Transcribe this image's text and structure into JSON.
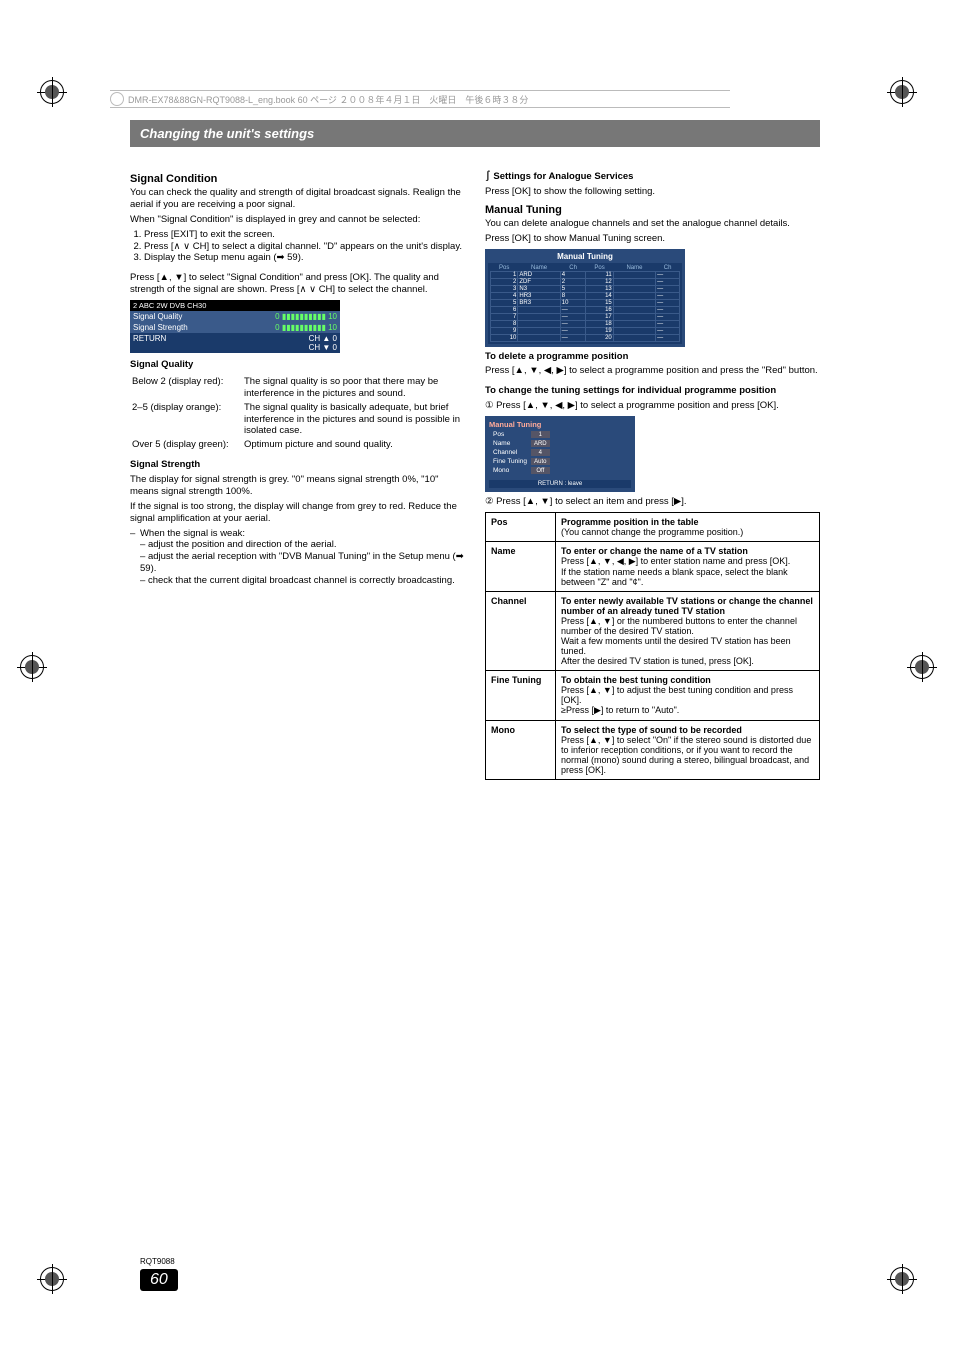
{
  "meta": {
    "line": "DMR-EX78&88GN-RQT9088-L_eng.book  60 ページ  ２００８年４月１日　火曜日　午後６時３８分"
  },
  "header": "Changing the unit's settings",
  "left": {
    "h1": "Signal Condition",
    "p1": "You can check the quality and strength of digital broadcast signals. Realign the aerial if you are receiving a poor signal.",
    "p2": "When \"Signal Condition\" is displayed in grey and cannot be selected:",
    "steps": [
      "Press [EXIT] to exit the screen.",
      "Press [∧ ∨ CH] to select a digital channel. \"D\" appears on the unit's display.",
      "Display the Setup menu again (➡ 59)."
    ],
    "p3": "Press [▲, ▼] to select \"Signal Condition\" and press [OK]. The quality and strength of the signal are shown. Press [∧ ∨ CH] to select the channel.",
    "signal": {
      "hdr": "2 ABC  2W  DVB  CH30",
      "rows": [
        {
          "label": "Signal Quality",
          "v0": "0",
          "v1": "10"
        },
        {
          "label": "Signal Strength",
          "v0": "0",
          "v1": "10"
        }
      ],
      "ftrL": "RETURN",
      "ftrR1": "CH ▲ 0",
      "ftrR2": "CH ▼ 0"
    },
    "sq": "Signal Quality",
    "sqrows": [
      {
        "a": "Below 2 (display red):",
        "b": "The signal quality is so poor that there may be interference in the pictures and sound."
      },
      {
        "a": "2–5 (display orange):",
        "b": "The signal quality is basically adequate, but brief interference in the pictures and sound is possible in isolated case."
      },
      {
        "a": "Over 5 (display green):",
        "b": "Optimum picture and sound quality."
      }
    ],
    "ss": "Signal Strength",
    "ss1": "The display for signal strength is grey. \"0\" means signal strength 0%, \"10\" means signal strength 100%.",
    "ss2": "If the signal is too strong, the display will change from grey to red. Reduce the signal amplification at your aerial.",
    "ss3": "When the signal is weak:",
    "sslist": [
      "adjust the position and direction of the aerial.",
      "adjust the aerial reception with \"DVB Manual Tuning\" in the Setup menu (➡ 59).",
      "check that the current digital broadcast channel is correctly broadcasting."
    ]
  },
  "right": {
    "h1": "Settings for Analogue Services",
    "p1": "Press [OK] to show the following setting.",
    "h2": "Manual Tuning",
    "p2": "You can delete analogue channels and set the analogue channel details.",
    "p3": "Press [OK] to show Manual Tuning screen.",
    "mt": {
      "title": "Manual Tuning",
      "heads": [
        "Pos",
        "Name",
        "Ch",
        "Pos",
        "Name",
        "Ch"
      ],
      "rows": [
        [
          "1",
          "ARD",
          "4",
          "11",
          "",
          "—"
        ],
        [
          "2",
          "ZDF",
          "2",
          "12",
          "",
          "—"
        ],
        [
          "3",
          "N3",
          "5",
          "13",
          "",
          "—"
        ],
        [
          "4",
          "HR3",
          "8",
          "14",
          "",
          "—"
        ],
        [
          "5",
          "BR3",
          "10",
          "15",
          "",
          "—"
        ],
        [
          "6",
          "",
          "—",
          "16",
          "",
          "—"
        ],
        [
          "7",
          "",
          "—",
          "17",
          "",
          "—"
        ],
        [
          "8",
          "",
          "—",
          "18",
          "",
          "—"
        ],
        [
          "9",
          "",
          "—",
          "19",
          "",
          "—"
        ],
        [
          "10",
          "",
          "—",
          "20",
          "",
          "—"
        ]
      ]
    },
    "del_h": "To delete a programme position",
    "del_p": "Press [▲, ▼, ◀, ▶] to select a programme position and press the \"Red\" button.",
    "chg_h": "To change the tuning settings for individual programme position",
    "chg_1": "① Press [▲, ▼, ◀, ▶] to select a programme position and press [OK].",
    "mts": {
      "label": "Manual Tuning",
      "rows": [
        [
          "Pos",
          "1"
        ],
        [
          "Name",
          "ARD"
        ],
        [
          "Channel",
          "4"
        ],
        [
          "Fine Tuning",
          "Auto"
        ],
        [
          "Mono",
          "Off"
        ]
      ],
      "ret": "RETURN : leave"
    },
    "chg_2": "② Press [▲, ▼] to select an item and press [▶].",
    "defs": [
      {
        "k": "Pos",
        "v": "<b>Programme position in the table</b><br>(You cannot change the programme position.)"
      },
      {
        "k": "Name",
        "v": "<b>To enter or change the name of a TV station</b><br>Press [▲, ▼, ◀, ▶] to enter station name and press [OK].<br>If the station name needs a blank space, select the blank between \"Z\" and \"¢\"."
      },
      {
        "k": "Channel",
        "v": "<b>To enter newly available TV stations or change the channel number of an already tuned TV station</b><br>Press [▲, ▼] or the numbered buttons to enter the channel number of the desired TV station.<br>Wait a few moments until the desired TV station has been tuned.<br>After the desired TV station is tuned, press [OK]."
      },
      {
        "k": "Fine Tuning",
        "v": "<b>To obtain the best tuning condition</b><br>Press [▲, ▼] to adjust the best tuning condition and press [OK].<br>≥Press [▶] to return to \"Auto\"."
      },
      {
        "k": "Mono",
        "v": "<b>To select the type of sound to be recorded</b><br>Press [▲, ▼] to select \"On\" if the stereo sound is distorted due to inferior reception conditions, or if you want to record the normal (mono) sound during a stereo, bilingual broadcast, and press [OK]."
      }
    ]
  },
  "footer": {
    "rqt": "RQT9088",
    "page": "60"
  }
}
